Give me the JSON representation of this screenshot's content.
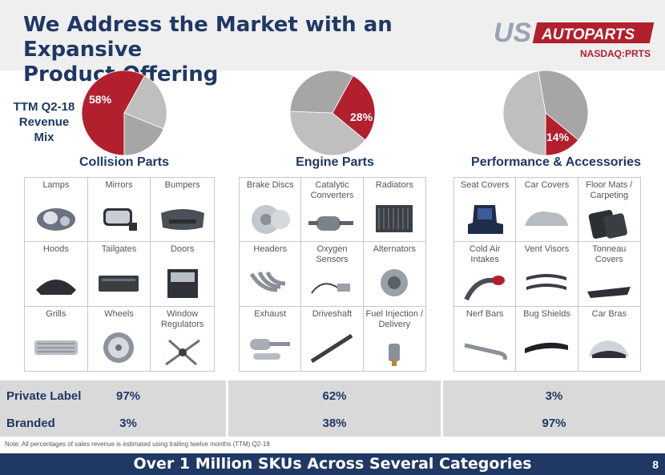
{
  "header": {
    "title_line1": "We Address the Market with an Expansive",
    "title_line2": "Product Offering",
    "logo_text": "USAUTOPARTS",
    "ticker": "NASDAQ:PRTS"
  },
  "revenue_mix_label_line1": "TTM Q2-18",
  "revenue_mix_label_line2": "Revenue",
  "revenue_mix_label_line3": "Mix",
  "colors": {
    "navy": "#1f3864",
    "red": "#b21f2d",
    "gray": "#bfbfbf",
    "gray_dark": "#a6a6a6"
  },
  "categories": [
    {
      "title": "Collision Parts",
      "share_label": "58%",
      "share": 0.58,
      "items": [
        {
          "label": "Lamps",
          "icon": "lamp-icon"
        },
        {
          "label": "Mirrors",
          "icon": "mirror-icon"
        },
        {
          "label": "Bumpers",
          "icon": "bumper-icon"
        },
        {
          "label": "Hoods",
          "icon": "hood-icon"
        },
        {
          "label": "Tailgates",
          "icon": "tailgate-icon"
        },
        {
          "label": "Doors",
          "icon": "door-icon"
        },
        {
          "label": "Grills",
          "icon": "grill-icon"
        },
        {
          "label": "Wheels",
          "icon": "wheel-icon"
        },
        {
          "label": "Window Regulators",
          "icon": "window-regulator-icon"
        }
      ],
      "private_label": "97%",
      "branded": "3%"
    },
    {
      "title": "Engine Parts",
      "share_label": "28%",
      "share": 0.28,
      "items": [
        {
          "label": "Brake Discs",
          "icon": "brake-disc-icon"
        },
        {
          "label": "Catalytic Converters",
          "icon": "catalytic-converter-icon"
        },
        {
          "label": "Radiators",
          "icon": "radiator-icon"
        },
        {
          "label": "Headers",
          "icon": "header-icon"
        },
        {
          "label": "Oxygen Sensors",
          "icon": "oxygen-sensor-icon"
        },
        {
          "label": "Alternators",
          "icon": "alternator-icon"
        },
        {
          "label": "Exhaust",
          "icon": "exhaust-icon"
        },
        {
          "label": "Driveshaft",
          "icon": "driveshaft-icon"
        },
        {
          "label": "Fuel Injection / Delivery",
          "icon": "fuel-injector-icon"
        }
      ],
      "private_label": "62%",
      "branded": "38%"
    },
    {
      "title": "Performance & Accessories",
      "share_label": "14%",
      "share": 0.14,
      "items": [
        {
          "label": "Seat Covers",
          "icon": "seat-cover-icon"
        },
        {
          "label": "Car Covers",
          "icon": "car-cover-icon"
        },
        {
          "label": "Floor Mats / Carpeting",
          "icon": "floor-mat-icon"
        },
        {
          "label": "Cold Air Intakes",
          "icon": "cold-air-intake-icon"
        },
        {
          "label": "Vent Visors",
          "icon": "vent-visor-icon"
        },
        {
          "label": "Tonneau Covers",
          "icon": "tonneau-cover-icon"
        },
        {
          "label": "Nerf Bars",
          "icon": "nerf-bar-icon"
        },
        {
          "label": "Bug Shields",
          "icon": "bug-shield-icon"
        },
        {
          "label": "Car Bras",
          "icon": "car-bra-icon"
        }
      ],
      "private_label": "3%",
      "branded": "97%"
    }
  ],
  "stats_labels": {
    "private_label": "Private Label",
    "branded": "Branded"
  },
  "note": "Note: All percentages of sales revenue  is estimated using trailing twelve months (TTM) Q2-18",
  "footer": {
    "text": "Over 1 Million SKUs Across Several Categories",
    "page_number": "8"
  }
}
